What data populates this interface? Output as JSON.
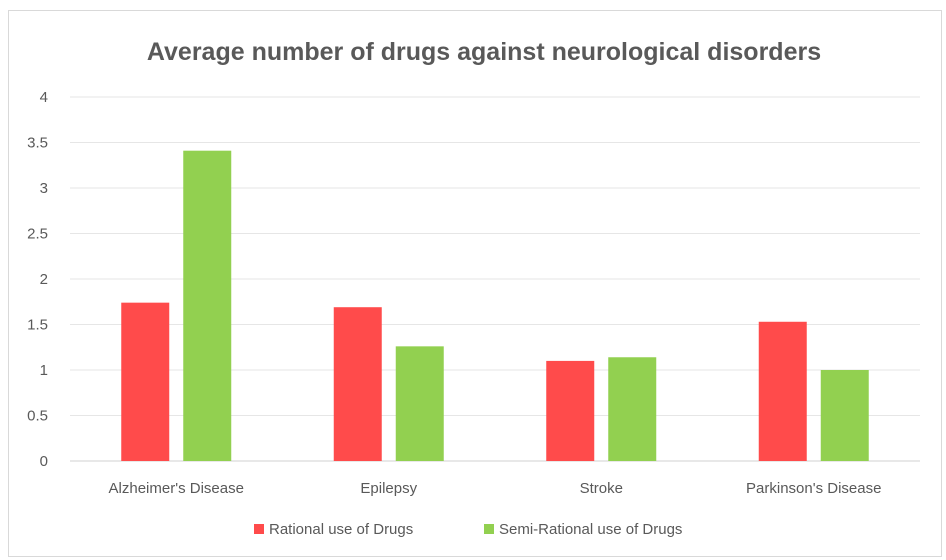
{
  "chart_data": {
    "type": "bar",
    "title": "Average number of drugs against neurological disorders",
    "categories": [
      "Alzheimer's Disease",
      "Epilepsy",
      "Stroke",
      "Parkinson's Disease"
    ],
    "series": [
      {
        "name": "Rational use of Drugs",
        "values": [
          1.74,
          1.69,
          1.1,
          1.53
        ],
        "color": "#ff4b4b"
      },
      {
        "name": "Semi-Rational use of Drugs",
        "values": [
          3.41,
          1.26,
          1.14,
          1.0
        ],
        "color": "#92d050"
      }
    ],
    "ylim": [
      0,
      4
    ],
    "yticks": [
      "0",
      "0.5",
      "1",
      "1.5",
      "2",
      "2.5",
      "3",
      "3.5",
      "4"
    ],
    "grid": true,
    "legend_position": "bottom"
  }
}
